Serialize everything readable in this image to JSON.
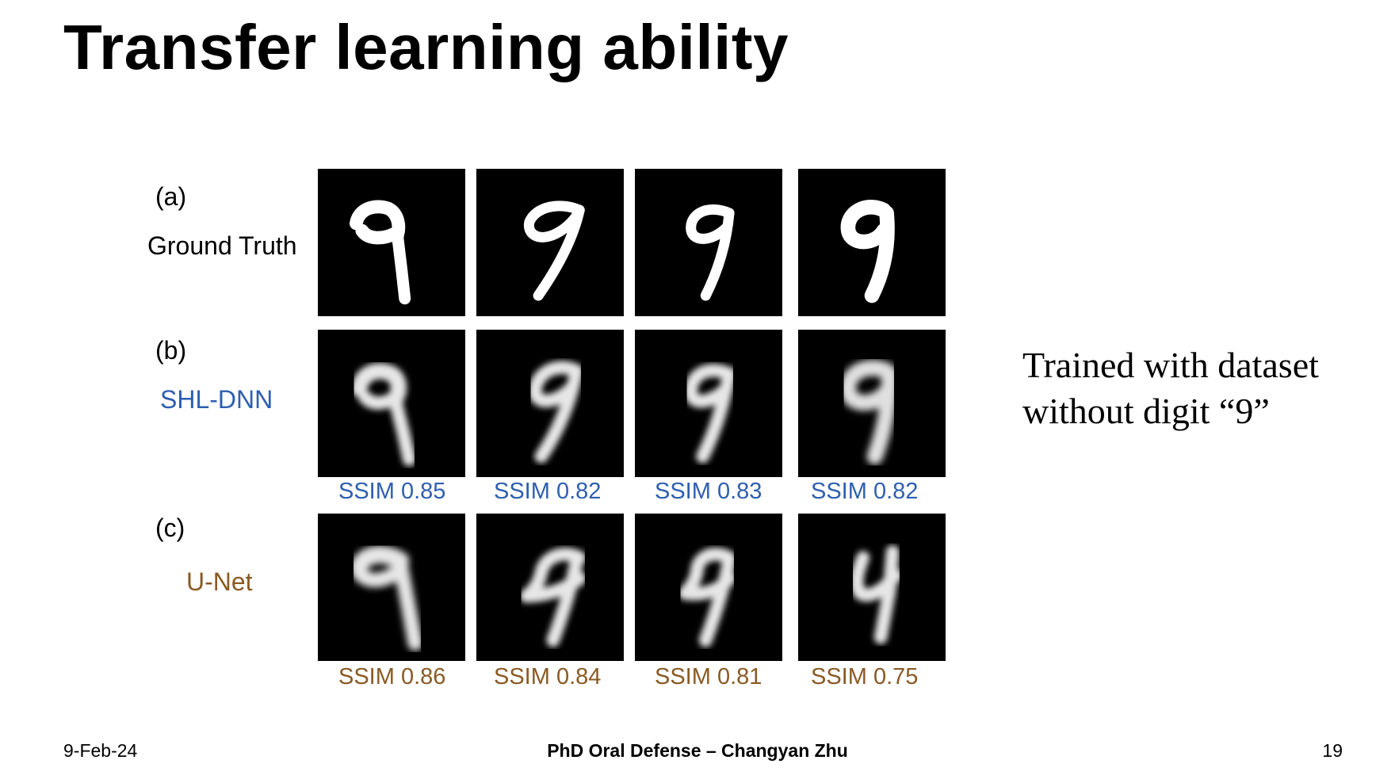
{
  "slide": {
    "title": "Transfer learning ability",
    "note_line1": "Trained with dataset",
    "note_line2": "without digit “9”"
  },
  "rows": [
    {
      "tag": "(a)",
      "label": "Ground Truth",
      "label_color": "#000000",
      "ssim": [],
      "ssim_color": "#000000"
    },
    {
      "tag": "(b)",
      "label": "SHL-DNN",
      "label_color": "#2e5fb0",
      "ssim": [
        "SSIM 0.85",
        "SSIM 0.82",
        "SSIM 0.83",
        "SSIM 0.82"
      ],
      "ssim_color": "#2e5fb0"
    },
    {
      "tag": "(c)",
      "label": "U-Net",
      "label_color": "#8a5a24",
      "ssim": [
        "SSIM 0.86",
        "SSIM 0.84",
        "SSIM 0.81",
        "SSIM 0.75"
      ],
      "ssim_color": "#8a5a24"
    }
  ],
  "footer": {
    "date": "9-Feb-24",
    "center": "PhD Oral Defense – Changyan Zhu",
    "page": "19"
  }
}
